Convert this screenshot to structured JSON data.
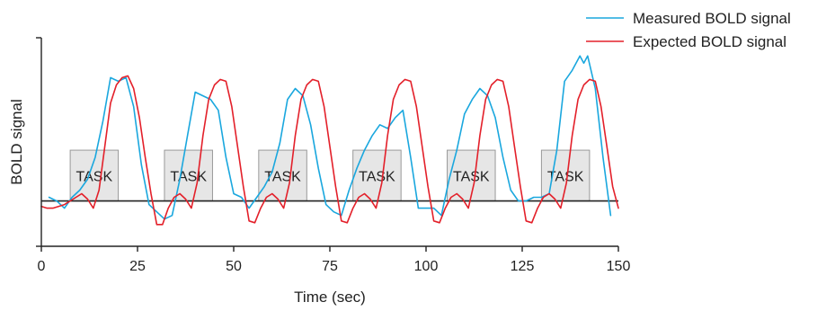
{
  "chart_data": {
    "type": "line",
    "xlabel": "Time (sec)",
    "ylabel": "BOLD signal",
    "xlim": [
      0,
      150
    ],
    "xticks": [
      "0",
      "25",
      "50",
      "75",
      "100",
      "125",
      "150"
    ],
    "ylim": [
      -1.25,
      4.5
    ],
    "baseline": 0,
    "legend_position": "top-right",
    "task_label": "TASK",
    "task_blocks": [
      [
        7.5,
        20
      ],
      [
        32,
        44.5
      ],
      [
        56.5,
        69
      ],
      [
        81,
        93.5
      ],
      [
        105.5,
        118
      ],
      [
        130,
        142.5
      ]
    ],
    "task_block_height": 1.4,
    "series": [
      {
        "name": "Measured BOLD signal",
        "color": "#1aa7de",
        "x": [
          2,
          4,
          6,
          8,
          10,
          12,
          14,
          16,
          18,
          20,
          22,
          24,
          26,
          28,
          30,
          32,
          34,
          36,
          38,
          40,
          42,
          44,
          46,
          48,
          50,
          52,
          54,
          56,
          58,
          60,
          62,
          64,
          66,
          68,
          70,
          72,
          74,
          76,
          78,
          80,
          82,
          84,
          86,
          88,
          90,
          92,
          94,
          96,
          98,
          100,
          102,
          104,
          106,
          108,
          110,
          112,
          114,
          116,
          118,
          120,
          122,
          124,
          126,
          128,
          130,
          132,
          134,
          136,
          138,
          140,
          141,
          142,
          144,
          146,
          148
        ],
        "values": [
          0.1,
          0.0,
          -0.2,
          0.1,
          0.3,
          0.6,
          1.2,
          2.2,
          3.4,
          3.3,
          3.4,
          2.6,
          1.0,
          -0.1,
          -0.3,
          -0.5,
          -0.4,
          0.6,
          1.8,
          3.0,
          2.9,
          2.8,
          2.5,
          1.2,
          0.2,
          0.1,
          -0.2,
          0.1,
          0.4,
          0.8,
          1.6,
          2.8,
          3.1,
          2.9,
          2.1,
          0.9,
          -0.1,
          -0.3,
          -0.4,
          0.3,
          0.9,
          1.4,
          1.8,
          2.1,
          2.0,
          2.3,
          2.5,
          1.2,
          -0.2,
          -0.2,
          -0.2,
          -0.4,
          0.6,
          1.4,
          2.4,
          2.8,
          3.1,
          2.9,
          2.3,
          1.2,
          0.3,
          0.0,
          0.0,
          0.1,
          0.1,
          0.2,
          1.4,
          3.3,
          3.6,
          4.0,
          3.8,
          4.0,
          3.1,
          1.2,
          -0.4
        ]
      },
      {
        "name": "Expected BOLD signal",
        "color": "#e3202a",
        "x": [
          0,
          1.5,
          3,
          4.5,
          6,
          7.5,
          9,
          10.5,
          12,
          13.5,
          15,
          16.5,
          18,
          19.5,
          21,
          22.5,
          24,
          25.5,
          27,
          28.5,
          30,
          31.5,
          33,
          34.5,
          36,
          37.5,
          39,
          40.5,
          42,
          43.5,
          45,
          46.5,
          48,
          49.5,
          51,
          52.5,
          54,
          55.5,
          57,
          58.5,
          60,
          61.5,
          63,
          64.5,
          66,
          67.5,
          69,
          70.5,
          72,
          73.5,
          75,
          76.5,
          78,
          79.5,
          81,
          82.5,
          84,
          85.5,
          87,
          88.5,
          90,
          91.5,
          93,
          94.5,
          96,
          97.5,
          99,
          100.5,
          102,
          103.5,
          105,
          106.5,
          108,
          109.5,
          111,
          112.5,
          114,
          115.5,
          117,
          118.5,
          120,
          121.5,
          123,
          124.5,
          126,
          127.5,
          129,
          130.5,
          132,
          133.5,
          135,
          136.5,
          138,
          139.5,
          141,
          142.5,
          144,
          145.5,
          147,
          148.5,
          150
        ],
        "values": [
          -0.15,
          -0.2,
          -0.2,
          -0.15,
          -0.1,
          0.0,
          0.1,
          0.2,
          0.05,
          -0.2,
          0.3,
          1.5,
          2.7,
          3.2,
          3.4,
          3.45,
          3.1,
          2.3,
          1.2,
          0.2,
          -0.65,
          -0.65,
          -0.2,
          0.1,
          0.2,
          0.05,
          -0.2,
          0.5,
          1.8,
          2.8,
          3.2,
          3.35,
          3.3,
          2.6,
          1.5,
          0.4,
          -0.55,
          -0.6,
          -0.2,
          0.1,
          0.2,
          0.05,
          -0.2,
          0.5,
          1.8,
          2.8,
          3.2,
          3.35,
          3.3,
          2.6,
          1.5,
          0.4,
          -0.55,
          -0.6,
          -0.2,
          0.1,
          0.2,
          0.05,
          -0.2,
          0.5,
          1.8,
          2.8,
          3.2,
          3.35,
          3.3,
          2.6,
          1.5,
          0.4,
          -0.55,
          -0.6,
          -0.2,
          0.1,
          0.2,
          0.05,
          -0.2,
          0.5,
          1.8,
          2.8,
          3.2,
          3.35,
          3.3,
          2.6,
          1.5,
          0.4,
          -0.55,
          -0.6,
          -0.2,
          0.1,
          0.2,
          0.05,
          -0.2,
          0.5,
          1.8,
          2.8,
          3.2,
          3.35,
          3.3,
          2.6,
          1.5,
          0.4,
          -0.2
        ]
      }
    ]
  }
}
